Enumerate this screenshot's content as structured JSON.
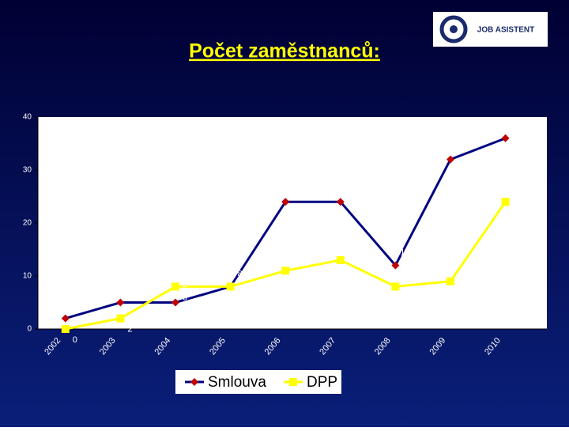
{
  "logo": "JOB ASISTENT",
  "chart_data": {
    "type": "line",
    "title": "Počet zaměstnanců:",
    "categories": [
      "2002",
      "2003",
      "2004",
      "2005",
      "2006",
      "2007",
      "2008",
      "2009",
      "2010"
    ],
    "series": [
      {
        "name": "Smlouva",
        "color": "#c00000",
        "line_color": "#000080",
        "marker": "diamond",
        "values": [
          2,
          5,
          5,
          8,
          24,
          24,
          12,
          32,
          36
        ]
      },
      {
        "name": "DPP",
        "color": "#ffff00",
        "line_color": "#ffff00",
        "marker": "square",
        "values": [
          0,
          2,
          8,
          8,
          11,
          13,
          8,
          9,
          24
        ]
      }
    ],
    "ylim": [
      0,
      40
    ],
    "yticks": [
      0,
      10,
      20,
      30,
      40
    ],
    "grid": false,
    "legend": "bottom"
  }
}
